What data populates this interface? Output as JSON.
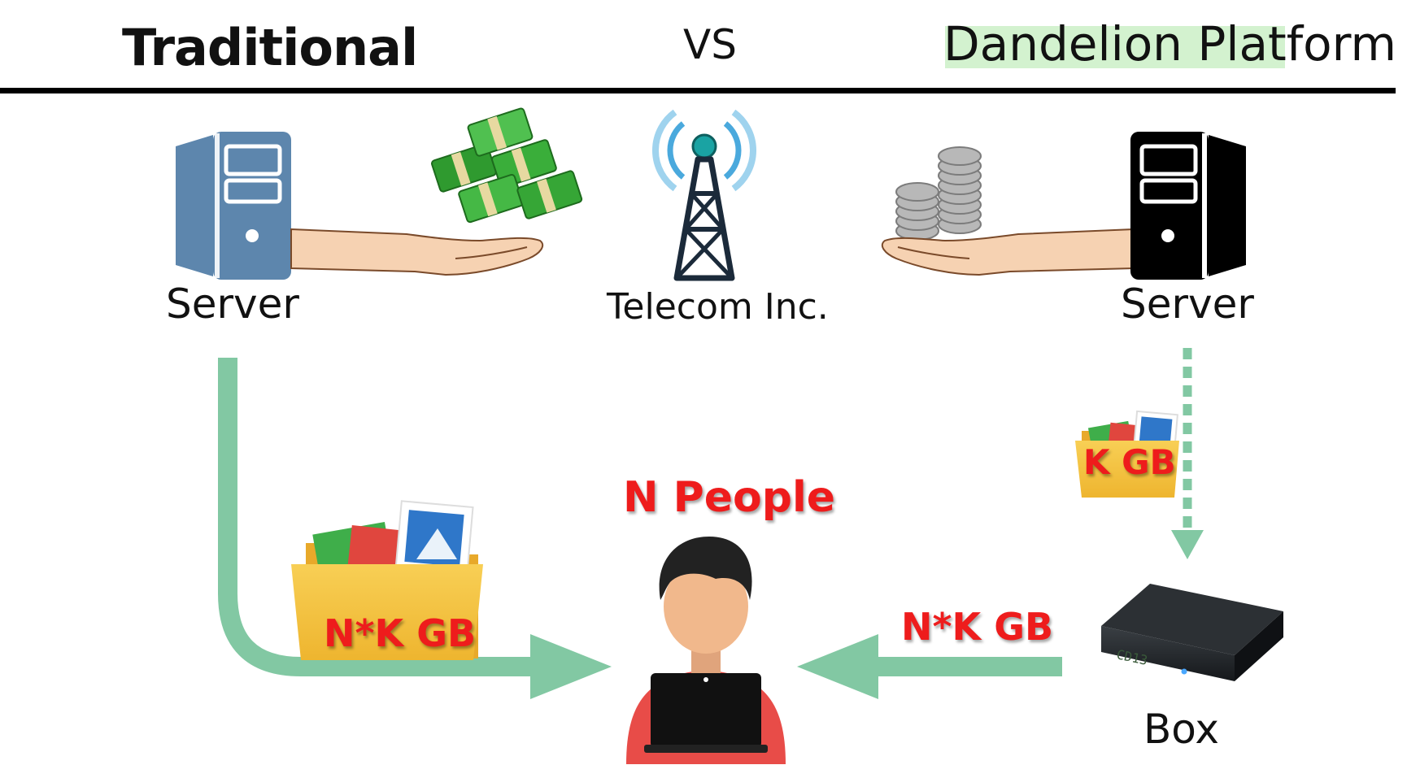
{
  "header": {
    "left_title": "Traditional",
    "vs": "VS",
    "right_title": "Dandelion Platform"
  },
  "nodes": {
    "server_left": "Server",
    "telecom": "Telecom Inc.",
    "server_right": "Server",
    "people": "N People",
    "box": "Box"
  },
  "transfers": {
    "left_folder": "N*K GB",
    "right_folder": "K GB",
    "box_to_people": "N*K GB"
  },
  "colors": {
    "arrow_green": "#82c8a3",
    "label_red": "#ee1c1c",
    "highlight": "#d3f2cf",
    "server_left": "#5d86ad",
    "server_right": "#000000",
    "folder": "#f5c443"
  }
}
